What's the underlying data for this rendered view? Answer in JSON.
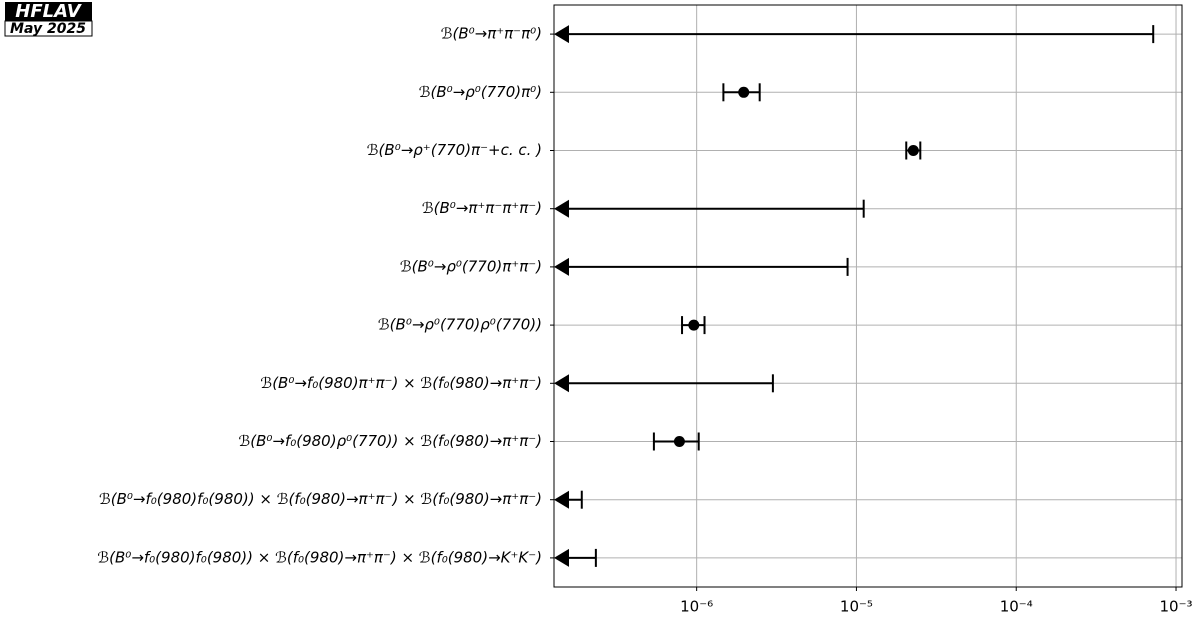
{
  "chart_data": {
    "type": "limit-errorbar",
    "watermark": [
      "HFLAV",
      "May 2025"
    ],
    "categories": [
      "ℬ(B⁰→π⁺π⁻π⁰)",
      "ℬ(B⁰→ρ⁰(770)π⁰)",
      "ℬ(B⁰→ρ⁺(770)π⁻+c. c. )",
      "ℬ(B⁰→π⁺π⁻π⁺π⁻)",
      "ℬ(B⁰→ρ⁰(770)π⁺π⁻)",
      "ℬ(B⁰→ρ⁰(770)ρ⁰(770))",
      "ℬ(B⁰→f₀(980)π⁺π⁻) × ℬ(f₀(980)→π⁺π⁻)",
      "ℬ(B⁰→f₀(980)ρ⁰(770)) × ℬ(f₀(980)→π⁺π⁻)",
      "ℬ(B⁰→f₀(980)f₀(980)) × ℬ(f₀(980)→π⁺π⁻) × ℬ(f₀(980)→π⁺π⁻)",
      "ℬ(B⁰→f₀(980)f₀(980)) × ℬ(f₀(980)→π⁺π⁻) × ℬ(f₀(980)→K⁺K⁻)"
    ],
    "values": [
      null,
      1.97e-06,
      2.27e-05,
      null,
      null,
      9.6e-07,
      null,
      7.8e-07,
      null,
      null
    ],
    "err_low": [
      null,
      5e-07,
      2.2e-06,
      null,
      null,
      1.5e-07,
      null,
      2.4e-07,
      null,
      null
    ],
    "err_high": [
      null,
      5.1e-07,
      2.4e-06,
      null,
      null,
      1.6e-07,
      null,
      2.5e-07,
      null,
      null
    ],
    "upper_limits": [
      0.00072,
      null,
      null,
      1.11e-05,
      8.8e-06,
      null,
      3e-06,
      null,
      1.91e-07,
      2.34e-07
    ],
    "color": "#000000",
    "xscale": "log",
    "xlim": [
      1.28e-07,
      0.00109
    ],
    "xticks": [
      {
        "value": 1e-06,
        "label": "10⁻⁶"
      },
      {
        "value": 1e-05,
        "label": "10⁻⁵"
      },
      {
        "value": 0.0001,
        "label": "10⁻⁴"
      },
      {
        "value": 0.001,
        "label": "10⁻³"
      }
    ],
    "grid": true
  }
}
